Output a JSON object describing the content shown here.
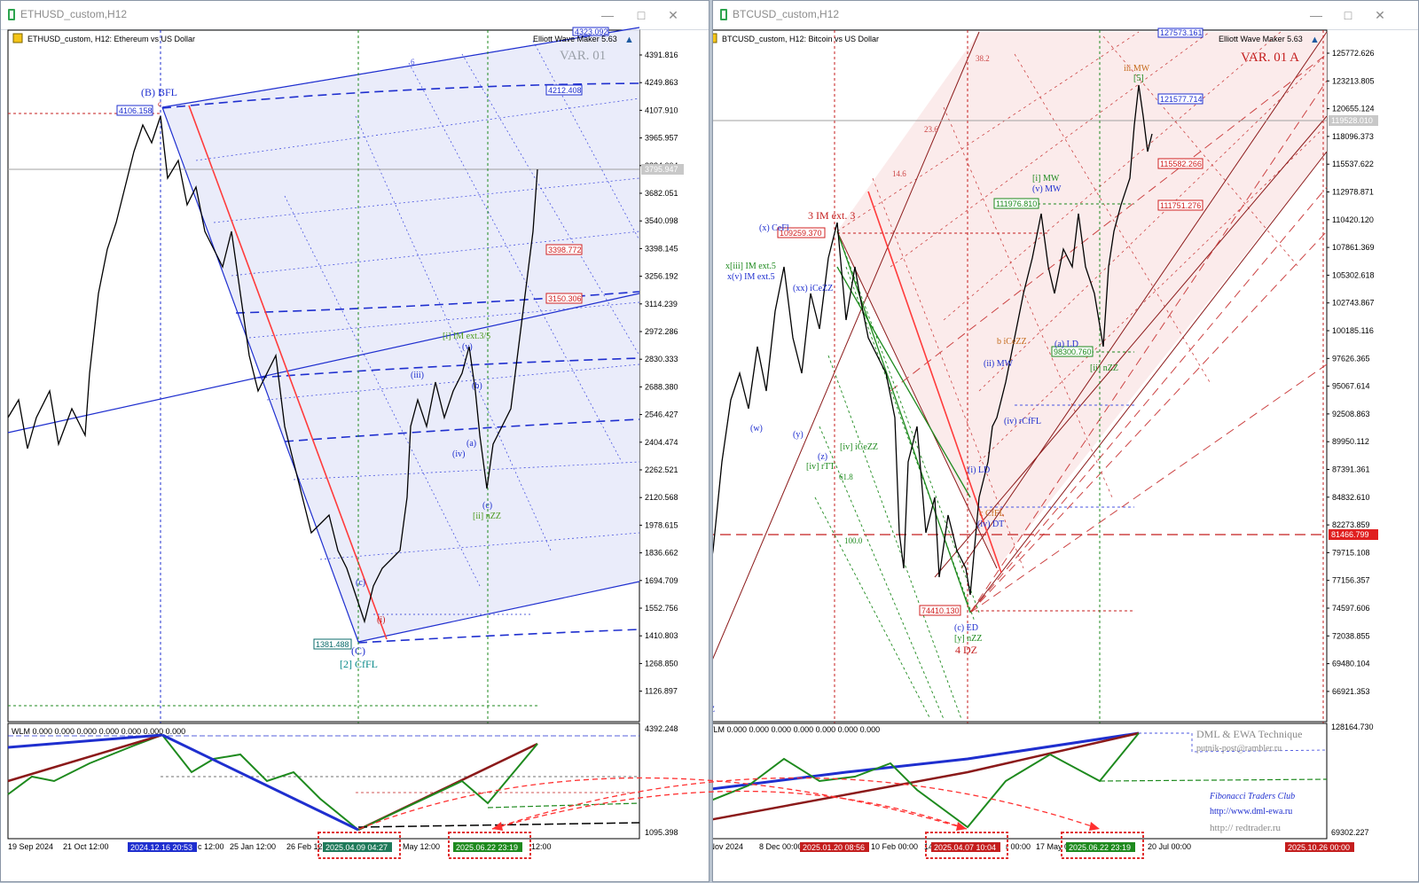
{
  "eth": {
    "window_title": "ETHUSD_custom,H12",
    "chart_caption": "ETHUSD_custom, H12:  Ethereum vs US Dollar",
    "indicator": "Elliott Wave Maker 5.63",
    "variant": "VAR. 01",
    "price_axis": [
      "4391.816",
      "4249.863",
      "4107.910",
      "3965.957",
      "3824.004",
      "3682.051",
      "3540.098",
      "3398.145",
      "3256.192",
      "3114.239",
      "2972.286",
      "2830.333",
      "2688.380",
      "2546.427",
      "2404.474",
      "2262.521",
      "2120.568",
      "1978.615",
      "1836.662",
      "1694.709",
      "1552.756",
      "1410.803",
      "1268.850",
      "1126.897"
    ],
    "current_price": "3795.947",
    "price_boxes": {
      "top": "4323.092",
      "b4212": "4212.408",
      "b4106": "4106.158",
      "b3398": "3398.772",
      "b3150": "3150.306",
      "b1381": "1381.488"
    },
    "wave_labels": {
      "bfl": "(B) BFL",
      "c_small": "c",
      "cfl": "[2] CfFL",
      "c_big": "(C)",
      "im": "[i] IM ext.3/5",
      "v": "(v)",
      "iii": "(iii)",
      "b": "(b)",
      "a": "(a)",
      "iv": "(iv)",
      "c2": "(c)",
      "nzz": "[ii] nZZ",
      "i": "(i)",
      "cc": "(c)",
      "a2": "(a)",
      "s6": "6"
    },
    "sub_axis": [
      "4392.248",
      "1095.398"
    ],
    "wlm": "WLM 0.000 0.000 0.000 0.000 0.000 0.000 0.000",
    "time_axis": [
      "19 Sep 2024",
      "21 Oct 12:00",
      "25 Jan 12:00",
      "26 Feb 12",
      "May 12:00",
      "12:00",
      "c 12:00"
    ],
    "time_highlights": [
      "2024.12.16 20:53",
      "2025.04.09 04:27",
      "2025.06.22 23:19"
    ]
  },
  "btc": {
    "window_title": "BTCUSD_custom,H12",
    "chart_caption": "BTCUSD_custom, H12:  Bitcoin vs US Dollar",
    "indicator": "Elliott Wave Maker 5.63",
    "variant": "VAR. 01 A",
    "price_axis": [
      "125772.626",
      "123213.805",
      "120655.124",
      "118096.373",
      "115537.622",
      "112978.871",
      "110420.120",
      "107861.369",
      "105302.618",
      "102743.867",
      "100185.116",
      "97626.365",
      "95067.614",
      "92508.863",
      "89950.112",
      "87391.361",
      "84832.610",
      "82273.859",
      "79715.108",
      "77156.357",
      "74597.606",
      "72038.855",
      "69480.104",
      "66921.353"
    ],
    "current_price": "119528.010",
    "red_price": "81466.799",
    "price_boxes": {
      "b127573": "127573.161",
      "b121577": "121577.714",
      "b115582": "115582.266",
      "b111751": "111751.276",
      "b111976": "111976.810",
      "b109259": "109259.370",
      "b98300": "98300.760",
      "b74410": "74410.130"
    },
    "wave_labels": {
      "iiimw": "iii MW",
      "s5": "[5]",
      "imext3": "3 IM ext. 3",
      "xceff": "(x) CeFl",
      "xiii": "x[iii] IM ext.5",
      "xv": "x(v) IM ext.5",
      "xxice": "(xx) iCeZZ",
      "imw": "[i] MW",
      "vmw": "(v) MW",
      "ice": "b iCeZZ",
      "iimw": "(ii) MW",
      "icfl": "(iv) rCfFL",
      "ild": "(i) LD",
      "ccfl": "c CfFL",
      "ydt": "(iv) DT",
      "ced": "(c) ED",
      "yzz": "[y] nZZ",
      "dz4": "4 DZ",
      "izz": "[ii] nZZ",
      "ald": "(a) LD",
      "iv_rtt": "[iv] rTT",
      "ivice": "[iv] iCeZZ",
      "w": "(w)",
      "y": "(y)",
      "z": "(z)",
      "f382": "38.2",
      "f236": "23.6",
      "f146": "14.6",
      "f618": "61.8",
      "f1000": "100.0",
      "dz": "DZ",
      "f5": "5"
    },
    "sub_axis": [
      "128164.730",
      "69302.227"
    ],
    "wlm": "WLM 0.000 0.000 0.000 0.000 0.000 0.000 0.000",
    "time_axis": [
      "6 Nov 2024",
      "8 Dec 00:00",
      "10 Feb 00:00",
      "14",
      "r 00:00",
      "17 May 00:00",
      "20 Jul 00:00"
    ],
    "time_highlights": [
      "2025.01.20 08:56",
      "2025.04.07 10:04",
      "2025.06.22 23:19",
      "2025.10.26 00:00"
    ],
    "credits": {
      "title": "DML & EWA Technique",
      "email": "putnik-post@rambler.ru",
      "club": "Fibonacci    Traders    Club",
      "url1": "http://www.dml-ewa.ru",
      "url2": "http://  redtrader.ru"
    }
  },
  "colors": {
    "blue": "#1f2fcf",
    "darkred": "#8b1a1a",
    "green": "#1e8a1e",
    "red": "#e03030"
  }
}
